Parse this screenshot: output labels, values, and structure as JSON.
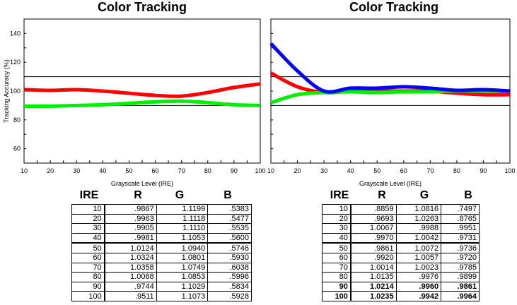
{
  "chart_data": [
    {
      "type": "line",
      "title": "Color Tracking",
      "xlabel": "Grayscale Level (IRE)",
      "ylabel": "Tracking Accuracy (%)",
      "x": [
        10,
        20,
        30,
        40,
        50,
        60,
        70,
        80,
        90,
        100
      ],
      "xlim": [
        10,
        100
      ],
      "ylim": [
        50,
        150
      ],
      "yticks": [
        60,
        80,
        100,
        120,
        140
      ],
      "xticks": [
        10,
        20,
        30,
        40,
        50,
        60,
        70,
        80,
        90,
        100
      ],
      "reference_lines": [
        90,
        110
      ],
      "series": [
        {
          "name": "Red",
          "color": "#ff0000",
          "values": [
            101,
            100.5,
            101,
            100,
            98.5,
            97,
            96.5,
            99,
            102.5,
            105
          ]
        },
        {
          "name": "Green",
          "color": "#00ee00",
          "values": [
            89.5,
            89.5,
            90,
            90.5,
            91.5,
            92.5,
            93,
            92,
            90.5,
            90
          ]
        }
      ]
    },
    {
      "type": "line",
      "title": "Color Tracking",
      "xlabel": "Grayscale Level (IRE)",
      "ylabel": "",
      "x": [
        10,
        20,
        30,
        40,
        50,
        60,
        70,
        80,
        90,
        100
      ],
      "xlim": [
        10,
        100
      ],
      "ylim": [
        50,
        150
      ],
      "yticks": [
        60,
        80,
        100,
        120,
        140
      ],
      "xticks": [
        10,
        20,
        30,
        40,
        50,
        60,
        70,
        80,
        90,
        100
      ],
      "reference_lines": [
        90,
        110
      ],
      "series": [
        {
          "name": "Red",
          "color": "#ff0000",
          "values": [
            112.5,
            103,
            99,
            100,
            100,
            100,
            100,
            98.5,
            97.5,
            97.5
          ]
        },
        {
          "name": "Green",
          "color": "#00ee00",
          "values": [
            92,
            97.5,
            99,
            99.5,
            99,
            99.5,
            99.5,
            100,
            100,
            100
          ]
        },
        {
          "name": "Blue",
          "color": "#0000ff",
          "values": [
            133,
            114,
            100,
            102,
            102,
            103,
            102,
            100.5,
            101,
            100
          ]
        }
      ]
    }
  ],
  "tables": [
    {
      "headers": [
        "IRE",
        "R",
        "G",
        "B"
      ],
      "rows": [
        [
          "10",
          ".9867",
          "1.1199",
          ".5383"
        ],
        [
          "20",
          ".9963",
          "1.1118",
          ".5477"
        ],
        [
          "30",
          ".9905",
          "1.1110",
          ".5535"
        ],
        [
          "40",
          ".9981",
          "1.1053",
          ".5600"
        ],
        [
          "50",
          "1.0124",
          "1.0940",
          ".5746"
        ],
        [
          "60",
          "1.0324",
          "1.0801",
          ".5930"
        ],
        [
          "70",
          "1.0358",
          "1.0749",
          ".6038"
        ],
        [
          "80",
          "1.0068",
          "1.0853",
          ".5996"
        ],
        [
          "90",
          ".9744",
          "1.1029",
          ".5834"
        ],
        [
          "100",
          ".9511",
          "1.1073",
          ".5928"
        ]
      ]
    },
    {
      "headers": [
        "IRE",
        "R",
        "G",
        "B"
      ],
      "rows": [
        [
          "10",
          ".8859",
          "1.0816",
          ".7497"
        ],
        [
          "20",
          ".9693",
          "1.0263",
          ".8765"
        ],
        [
          "30",
          "1.0067",
          ".9988",
          ".9951"
        ],
        [
          "40",
          ".9970",
          "1.0042",
          ".9731"
        ],
        [
          "50",
          ".9861",
          "1.0072",
          ".9736"
        ],
        [
          "60",
          ".9920",
          "1.0057",
          ".9720"
        ],
        [
          "70",
          "1.0014",
          "1.0023",
          ".9785"
        ],
        [
          "80",
          "1.0135",
          ".9976",
          ".9899"
        ],
        [
          "90",
          "1.0214",
          ".9960",
          ".9861"
        ],
        [
          "100",
          "1.0235",
          ".9942",
          ".9964"
        ]
      ]
    }
  ]
}
